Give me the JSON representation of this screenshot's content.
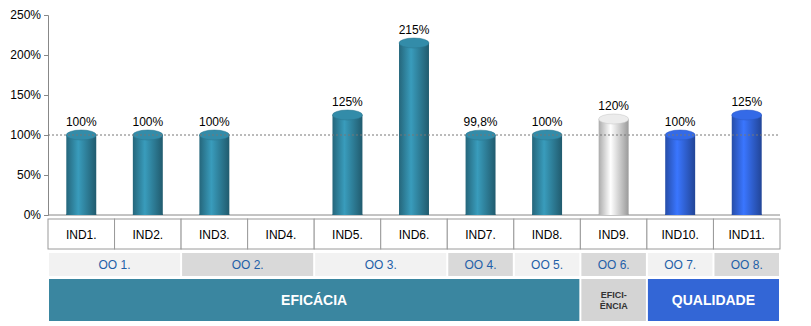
{
  "chart_data": {
    "type": "bar",
    "categories": [
      "IND1.",
      "IND2.",
      "IND3.",
      "IND4.",
      "IND5.",
      "IND6.",
      "IND7.",
      "IND8.",
      "IND9.",
      "IND10.",
      "IND11."
    ],
    "values": [
      100,
      100,
      100,
      null,
      125,
      215,
      99.8,
      100,
      120,
      100,
      125
    ],
    "value_labels": [
      "100%",
      "100%",
      "100%",
      null,
      "125%",
      "215%",
      "99,8%",
      "100%",
      "120%",
      "100%",
      "125%"
    ],
    "colors": [
      "#2e7e98",
      "#2e7e98",
      "#2e7e98",
      "#2e7e98",
      "#2e7e98",
      "#2e7e98",
      "#2e7e98",
      "#2e7e98",
      "#d4d4d4",
      "#2f5fd0",
      "#2f5fd0"
    ],
    "data_labels": true,
    "grid": false,
    "ylim": [
      0,
      250
    ],
    "yticks": [
      {
        "value": 0,
        "label": "0%"
      },
      {
        "value": 50,
        "label": "50%"
      },
      {
        "value": 100,
        "label": "100%"
      },
      {
        "value": 150,
        "label": "150%"
      },
      {
        "value": 200,
        "label": "200%"
      },
      {
        "value": 250,
        "label": "250%"
      }
    ],
    "target": 100,
    "groups": [
      {
        "label": "OO 1.",
        "categories": [
          "IND1.",
          "IND2."
        ],
        "color": "#f2f2f2"
      },
      {
        "label": "OO 2.",
        "categories": [
          "IND3.",
          "IND4."
        ],
        "color": "#d9d9d9"
      },
      {
        "label": "OO 3.",
        "categories": [
          "IND5.",
          "IND6."
        ],
        "color": "#f2f2f2"
      },
      {
        "label": "OO 4.",
        "categories": [
          "IND7."
        ],
        "color": "#d9d9d9"
      },
      {
        "label": "OO 5.",
        "categories": [
          "IND8."
        ],
        "color": "#f2f2f2"
      },
      {
        "label": "OO 6.",
        "categories": [
          "IND9."
        ],
        "color": "#d9d9d9"
      },
      {
        "label": "OO 7.",
        "categories": [
          "IND10."
        ],
        "color": "#f2f2f2"
      },
      {
        "label": "OO 8.",
        "categories": [
          "IND11."
        ],
        "color": "#d9d9d9"
      }
    ],
    "dimensions": [
      {
        "lines": [
          "EFICÁCIA"
        ],
        "categories": [
          "IND1.",
          "IND2.",
          "IND3.",
          "IND4.",
          "IND5.",
          "IND6.",
          "IND7.",
          "IND8."
        ],
        "color": "#3a86a0"
      },
      {
        "lines": [
          "EFICI-",
          "ÊNCIA"
        ],
        "categories": [
          "IND9."
        ],
        "color": "#d4d4d4"
      },
      {
        "lines": [
          "QUALIDADE"
        ],
        "categories": [
          "IND10.",
          "IND11."
        ],
        "color": "#3366d6"
      }
    ]
  }
}
